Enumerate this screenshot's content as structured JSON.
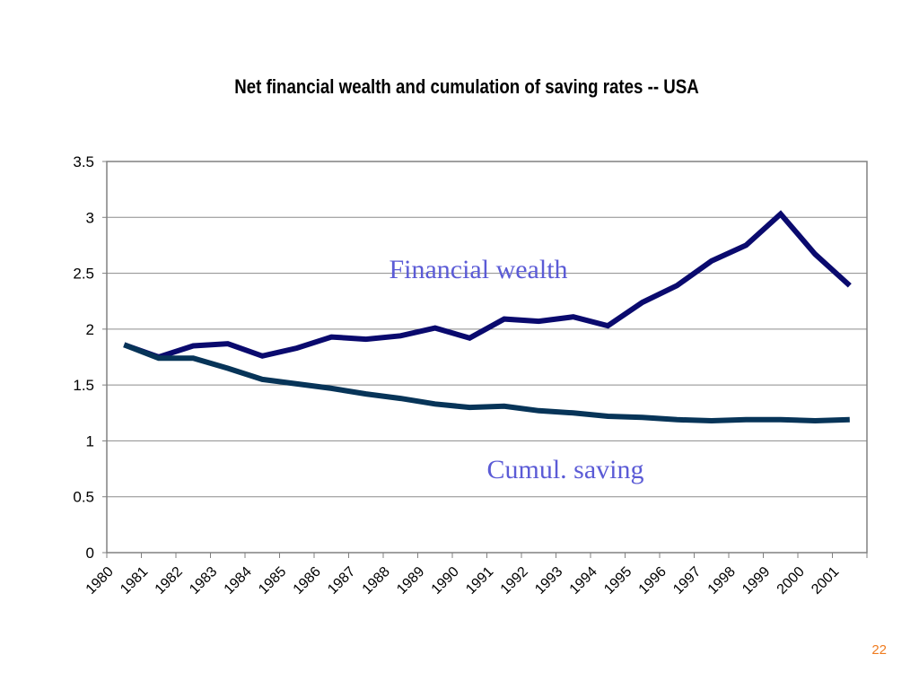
{
  "slide": {
    "page_number": "22"
  },
  "chart_data": {
    "type": "line",
    "title": "Net financial wealth and cumulation of saving rates -- USA",
    "xlabel": "",
    "ylabel": "",
    "categories": [
      "1980",
      "1981",
      "1982",
      "1983",
      "1984",
      "1985",
      "1986",
      "1987",
      "1988",
      "1989",
      "1990",
      "1991",
      "1992",
      "1993",
      "1994",
      "1995",
      "1996",
      "1997",
      "1998",
      "1999",
      "2000",
      "2001"
    ],
    "ylim": [
      0,
      3.5
    ],
    "yticks": [
      "0",
      "0.5",
      "1",
      "1.5",
      "2",
      "2.5",
      "3",
      "3.5"
    ],
    "grid": true,
    "series": [
      {
        "name": "Financial wealth",
        "color": "#0a0a6e",
        "values": [
          1.86,
          1.75,
          1.85,
          1.87,
          1.76,
          1.83,
          1.93,
          1.91,
          1.94,
          2.01,
          1.92,
          2.09,
          2.07,
          2.11,
          2.03,
          2.24,
          2.39,
          2.61,
          2.75,
          3.03,
          2.67,
          2.39
        ]
      },
      {
        "name": "Cumul. saving",
        "color": "#073458",
        "values": [
          1.86,
          1.74,
          1.74,
          1.65,
          1.55,
          1.51,
          1.47,
          1.42,
          1.38,
          1.33,
          1.3,
          1.31,
          1.27,
          1.25,
          1.22,
          1.21,
          1.19,
          1.18,
          1.19,
          1.19,
          1.18,
          1.19
        ]
      }
    ],
    "annotations": [
      {
        "text": "Financial wealth",
        "color": "#5b5bd6"
      },
      {
        "text": "Cumul. saving",
        "color": "#5b5bd6"
      }
    ]
  }
}
